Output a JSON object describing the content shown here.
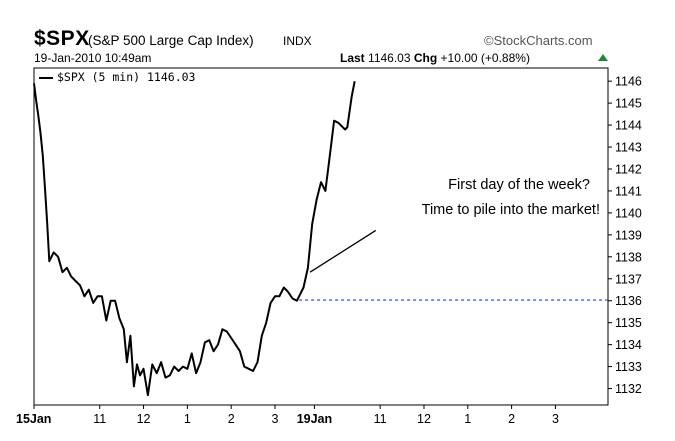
{
  "header": {
    "symbol": "$SPX",
    "name": "(S&P 500 Large Cap Index)",
    "exchange": "INDX",
    "brand": "©StockCharts.com",
    "datetime": "19-Jan-2010 10:49am",
    "last_label": "Last",
    "last_value": "1146.03",
    "chg_label": "Chg",
    "chg_value": "+10.00 (+0.88%)",
    "chg_color": "#1a8a3a"
  },
  "chart_data": {
    "type": "line",
    "title": "$SPX (S&P 500 Large Cap Index)",
    "series": [
      {
        "name": "$SPX (5 min) 1146.03",
        "color": "#000000",
        "points": [
          [
            0,
            1145.9
          ],
          [
            0.05,
            1145.1
          ],
          [
            0.1,
            1144.4
          ],
          [
            0.15,
            1143.6
          ],
          [
            0.2,
            1142.6
          ],
          [
            0.25,
            1141.1
          ],
          [
            0.3,
            1139.6
          ],
          [
            0.35,
            1137.8
          ],
          [
            0.45,
            1138.2
          ],
          [
            0.55,
            1138.0
          ],
          [
            0.65,
            1137.3
          ],
          [
            0.75,
            1137.5
          ],
          [
            0.85,
            1137.1
          ],
          [
            0.95,
            1136.9
          ],
          [
            1.05,
            1136.7
          ],
          [
            1.15,
            1136.2
          ],
          [
            1.25,
            1136.5
          ],
          [
            1.35,
            1135.9
          ],
          [
            1.45,
            1136.2
          ],
          [
            1.55,
            1136.2
          ],
          [
            1.65,
            1135.1
          ],
          [
            1.75,
            1136.0
          ],
          [
            1.85,
            1136.0
          ],
          [
            1.95,
            1135.2
          ],
          [
            2.05,
            1134.7
          ],
          [
            2.12,
            1133.2
          ],
          [
            2.2,
            1134.4
          ],
          [
            2.28,
            1132.1
          ],
          [
            2.35,
            1133.1
          ],
          [
            2.42,
            1132.6
          ],
          [
            2.5,
            1132.9
          ],
          [
            2.6,
            1131.7
          ],
          [
            2.7,
            1133.1
          ],
          [
            2.8,
            1132.7
          ],
          [
            2.9,
            1133.2
          ],
          [
            3.0,
            1132.5
          ],
          [
            3.1,
            1132.6
          ],
          [
            3.2,
            1133.0
          ],
          [
            3.3,
            1132.8
          ],
          [
            3.4,
            1133.0
          ],
          [
            3.5,
            1132.9
          ],
          [
            3.6,
            1133.6
          ],
          [
            3.7,
            1132.7
          ],
          [
            3.8,
            1133.2
          ],
          [
            3.9,
            1134.1
          ],
          [
            4.0,
            1134.2
          ],
          [
            4.1,
            1133.7
          ],
          [
            4.2,
            1134.0
          ],
          [
            4.3,
            1134.7
          ],
          [
            4.4,
            1134.6
          ],
          [
            4.5,
            1134.3
          ],
          [
            4.6,
            1134.0
          ],
          [
            4.7,
            1133.7
          ],
          [
            4.8,
            1133.0
          ],
          [
            4.9,
            1132.9
          ],
          [
            5.0,
            1132.8
          ],
          [
            5.1,
            1133.2
          ],
          [
            5.2,
            1134.4
          ],
          [
            5.3,
            1135.0
          ],
          [
            5.4,
            1135.9
          ],
          [
            5.5,
            1136.2
          ],
          [
            5.6,
            1136.2
          ],
          [
            5.7,
            1136.6
          ],
          [
            5.8,
            1136.4
          ],
          [
            5.9,
            1136.1
          ],
          [
            6.0,
            1136.0
          ],
          [
            6.05,
            1136.2
          ],
          [
            6.15,
            1136.6
          ],
          [
            6.25,
            1137.5
          ],
          [
            6.35,
            1139.5
          ],
          [
            6.45,
            1140.6
          ],
          [
            6.55,
            1141.4
          ],
          [
            6.65,
            1141.0
          ],
          [
            6.75,
            1142.6
          ],
          [
            6.85,
            1144.2
          ],
          [
            6.95,
            1144.1
          ],
          [
            7.05,
            1143.9
          ],
          [
            7.1,
            1143.8
          ],
          [
            7.15,
            1143.9
          ],
          [
            7.2,
            1144.6
          ],
          [
            7.25,
            1145.3
          ],
          [
            7.32,
            1146.0
          ]
        ]
      }
    ],
    "reference_line": {
      "value": 1136.03,
      "color": "#1a3aff",
      "style": "dashed"
    },
    "annotation": {
      "lines": [
        "First day of the week?",
        "Time to pile into the market!"
      ],
      "arrow_from": [
        7.8,
        1139.2
      ],
      "arrow_to": [
        6.3,
        1137.3
      ]
    },
    "x_ticks": [
      {
        "x": 0,
        "label": "15Jan",
        "bold": true
      },
      {
        "x": 1.5,
        "label": "11",
        "bold": false
      },
      {
        "x": 2.5,
        "label": "12",
        "bold": false
      },
      {
        "x": 3.5,
        "label": "1",
        "bold": false
      },
      {
        "x": 4.5,
        "label": "2",
        "bold": false
      },
      {
        "x": 5.5,
        "label": "3",
        "bold": false
      },
      {
        "x": 6.4,
        "label": "19Jan",
        "bold": true
      },
      {
        "x": 7.9,
        "label": "11",
        "bold": false
      },
      {
        "x": 8.9,
        "label": "12",
        "bold": false
      },
      {
        "x": 9.9,
        "label": "1",
        "bold": false
      },
      {
        "x": 10.9,
        "label": "2",
        "bold": false
      },
      {
        "x": 11.9,
        "label": "3",
        "bold": false
      }
    ],
    "y_ticks": [
      1132,
      1133,
      1134,
      1135,
      1136,
      1137,
      1138,
      1139,
      1140,
      1141,
      1142,
      1143,
      1144,
      1145,
      1146
    ],
    "xlim": [
      0,
      13.1
    ],
    "ylim": [
      1131.25,
      1146.6
    ],
    "grid": false,
    "legend_position": "top-left"
  }
}
